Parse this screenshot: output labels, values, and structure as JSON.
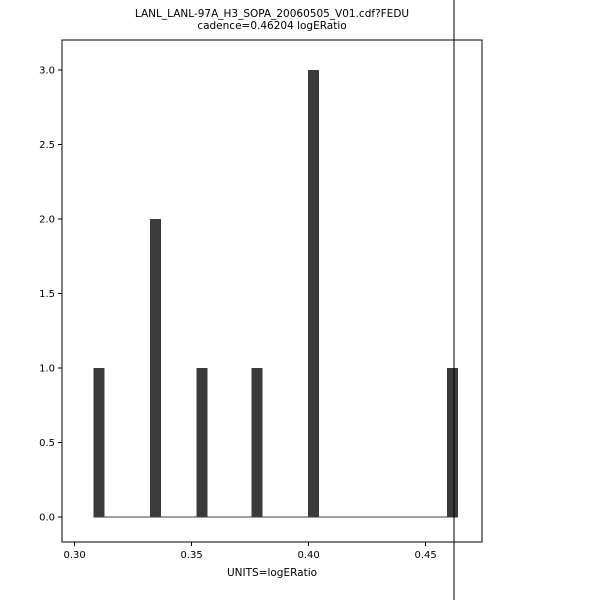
{
  "window": {
    "background": "#ffffff"
  },
  "chart_data": {
    "type": "bar",
    "title": "LANL_LANL-97A_H3_SOPA_20060505_V01.cdf?FEDU",
    "subtitle": "cadence=0.46204 logERatio",
    "xlabel": "UNITS=logERatio",
    "ylabel": "",
    "x": [
      0.3105,
      0.3345,
      0.3545,
      0.378,
      0.402,
      0.4615
    ],
    "values": [
      1,
      2,
      1,
      1,
      3,
      1
    ],
    "xlim": [
      0.2946,
      0.4741
    ],
    "ylim": [
      -0.168,
      3.201
    ],
    "xticks": [
      0.3,
      0.35,
      0.4,
      0.45
    ],
    "xtick_labels": [
      "0.30",
      "0.35",
      "0.40",
      "0.45"
    ],
    "yticks": [
      0.0,
      0.5,
      1.0,
      1.5,
      2.0,
      2.5,
      3.0
    ],
    "ytick_labels": [
      "0.0",
      "0.5",
      "1.0",
      "1.5",
      "2.0",
      "2.5",
      "3.0"
    ],
    "reference_line_x": 0.46204,
    "bar_color": "#3b3b3b",
    "axis_color": "#000000",
    "grid": false,
    "legend": null
  }
}
